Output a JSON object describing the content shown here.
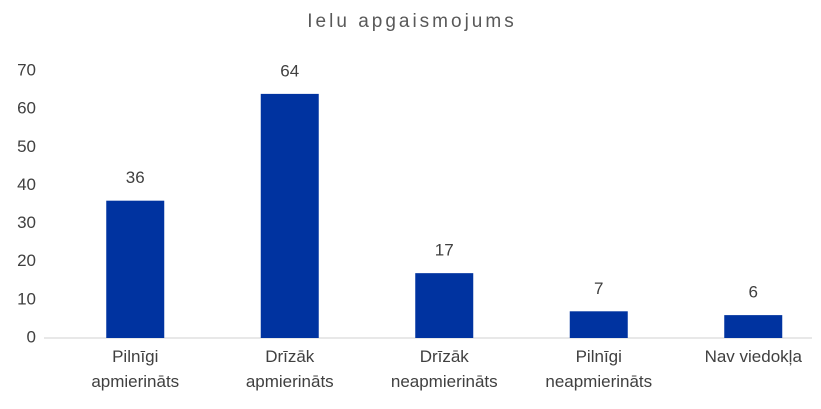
{
  "chart_data": {
    "type": "bar",
    "title": "Ielu apgaismojums",
    "categories": [
      "Pilnīgi apmierināts",
      "Drīzāk apmierināts",
      "Drīzāk neapmierināts",
      "Pilnīgi neapmierināts",
      "Nav viedokļa"
    ],
    "values": [
      36,
      64,
      17,
      7,
      6
    ],
    "color": "#0033a0",
    "ylim": [
      0,
      70
    ],
    "yticks": [
      0,
      10,
      20,
      30,
      40,
      50,
      60,
      70
    ],
    "grid": false
  }
}
